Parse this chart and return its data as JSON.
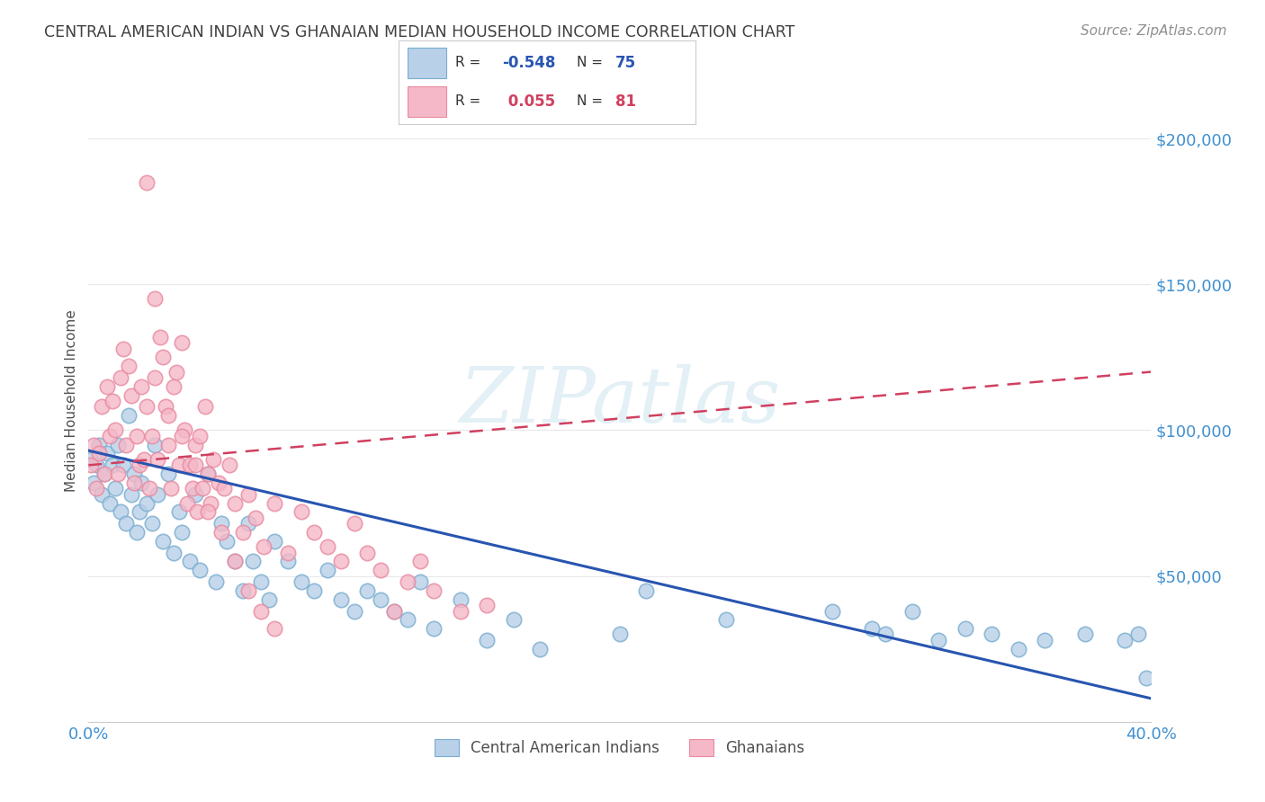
{
  "title": "CENTRAL AMERICAN INDIAN VS GHANAIAN MEDIAN HOUSEHOLD INCOME CORRELATION CHART",
  "source": "Source: ZipAtlas.com",
  "ylabel": "Median Household Income",
  "watermark": "ZIPatlas",
  "legend_blue_label": "Central American Indians",
  "legend_pink_label": "Ghanaians",
  "blue_face_color": "#b8d0e8",
  "blue_edge_color": "#7aadd0",
  "pink_face_color": "#f5b8c8",
  "pink_edge_color": "#e88aa0",
  "blue_line_color": "#2855b0",
  "pink_line_color": "#d04060",
  "title_color": "#404040",
  "source_color": "#909090",
  "axis_label_color": "#505050",
  "tick_color": "#4090d0",
  "grid_color": "#e8e8e8",
  "background_color": "#ffffff",
  "xlim": [
    0.0,
    0.4
  ],
  "ylim": [
    0,
    220000
  ],
  "yticks": [
    0,
    50000,
    100000,
    150000,
    200000
  ],
  "ytick_labels": [
    "",
    "$50,000",
    "$100,000",
    "$150,000",
    "$200,000"
  ],
  "blue_R": "-0.548",
  "blue_N": "75",
  "pink_R": "0.055",
  "pink_N": "81",
  "blue_line_x0": 0.0,
  "blue_line_y0": 93000,
  "blue_line_x1": 0.4,
  "blue_line_y1": 8000,
  "pink_line_x0": 0.0,
  "pink_line_y0": 88000,
  "pink_line_x1": 0.4,
  "pink_line_y1": 120000,
  "blue_scatter_x": [
    0.001,
    0.002,
    0.003,
    0.004,
    0.005,
    0.006,
    0.007,
    0.008,
    0.009,
    0.01,
    0.011,
    0.012,
    0.013,
    0.014,
    0.015,
    0.016,
    0.017,
    0.018,
    0.019,
    0.02,
    0.022,
    0.024,
    0.025,
    0.026,
    0.028,
    0.03,
    0.032,
    0.034,
    0.035,
    0.038,
    0.04,
    0.042,
    0.045,
    0.048,
    0.05,
    0.052,
    0.055,
    0.058,
    0.06,
    0.062,
    0.065,
    0.068,
    0.07,
    0.075,
    0.08,
    0.085,
    0.09,
    0.095,
    0.1,
    0.105,
    0.11,
    0.115,
    0.12,
    0.125,
    0.13,
    0.14,
    0.15,
    0.16,
    0.17,
    0.2,
    0.21,
    0.24,
    0.28,
    0.295,
    0.3,
    0.31,
    0.32,
    0.33,
    0.34,
    0.35,
    0.36,
    0.375,
    0.39,
    0.395,
    0.398
  ],
  "blue_scatter_y": [
    90000,
    82000,
    88000,
    95000,
    78000,
    85000,
    92000,
    75000,
    88000,
    80000,
    95000,
    72000,
    88000,
    68000,
    105000,
    78000,
    85000,
    65000,
    72000,
    82000,
    75000,
    68000,
    95000,
    78000,
    62000,
    85000,
    58000,
    72000,
    65000,
    55000,
    78000,
    52000,
    85000,
    48000,
    68000,
    62000,
    55000,
    45000,
    68000,
    55000,
    48000,
    42000,
    62000,
    55000,
    48000,
    45000,
    52000,
    42000,
    38000,
    45000,
    42000,
    38000,
    35000,
    48000,
    32000,
    42000,
    28000,
    35000,
    25000,
    30000,
    45000,
    35000,
    38000,
    32000,
    30000,
    38000,
    28000,
    32000,
    30000,
    25000,
    28000,
    30000,
    28000,
    30000,
    15000
  ],
  "pink_scatter_x": [
    0.001,
    0.002,
    0.003,
    0.004,
    0.005,
    0.006,
    0.007,
    0.008,
    0.009,
    0.01,
    0.011,
    0.012,
    0.013,
    0.014,
    0.015,
    0.016,
    0.017,
    0.018,
    0.019,
    0.02,
    0.021,
    0.022,
    0.023,
    0.024,
    0.025,
    0.026,
    0.027,
    0.028,
    0.029,
    0.03,
    0.031,
    0.032,
    0.033,
    0.034,
    0.035,
    0.036,
    0.037,
    0.038,
    0.039,
    0.04,
    0.041,
    0.042,
    0.043,
    0.044,
    0.045,
    0.046,
    0.047,
    0.049,
    0.051,
    0.053,
    0.055,
    0.058,
    0.06,
    0.063,
    0.066,
    0.07,
    0.075,
    0.08,
    0.085,
    0.09,
    0.095,
    0.1,
    0.105,
    0.11,
    0.115,
    0.12,
    0.125,
    0.13,
    0.14,
    0.15,
    0.025,
    0.03,
    0.035,
    0.04,
    0.045,
    0.05,
    0.055,
    0.06,
    0.065,
    0.07,
    0.022
  ],
  "pink_scatter_y": [
    88000,
    95000,
    80000,
    92000,
    108000,
    85000,
    115000,
    98000,
    110000,
    100000,
    85000,
    118000,
    128000,
    95000,
    122000,
    112000,
    82000,
    98000,
    88000,
    115000,
    90000,
    108000,
    80000,
    98000,
    118000,
    90000,
    132000,
    125000,
    108000,
    95000,
    80000,
    115000,
    120000,
    88000,
    130000,
    100000,
    75000,
    88000,
    80000,
    95000,
    72000,
    98000,
    80000,
    108000,
    85000,
    75000,
    90000,
    82000,
    80000,
    88000,
    75000,
    65000,
    78000,
    70000,
    60000,
    75000,
    58000,
    72000,
    65000,
    60000,
    55000,
    68000,
    58000,
    52000,
    38000,
    48000,
    55000,
    45000,
    38000,
    40000,
    145000,
    105000,
    98000,
    88000,
    72000,
    65000,
    55000,
    45000,
    38000,
    32000,
    185000
  ]
}
